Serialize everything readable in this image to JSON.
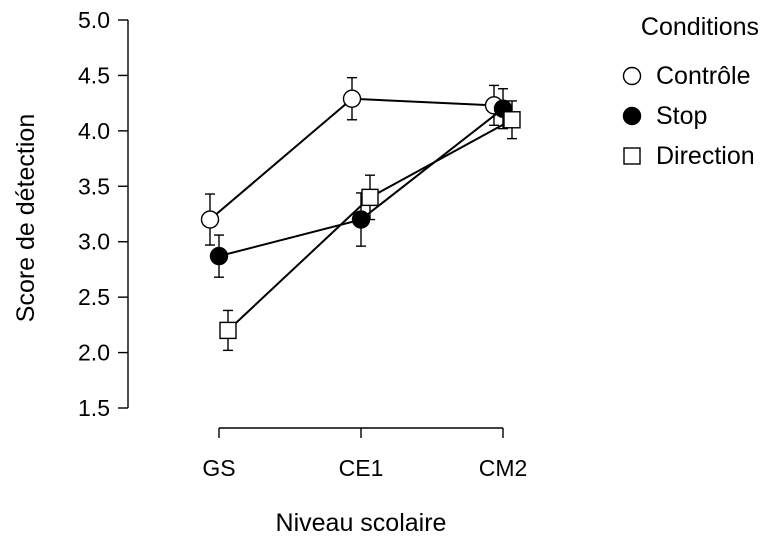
{
  "chart_data": {
    "type": "line",
    "title": "",
    "xlabel": "Niveau scolaire",
    "ylabel": "Score de détection",
    "categories": [
      "GS",
      "CE1",
      "CM2"
    ],
    "ylim": [
      1.5,
      5.0
    ],
    "yticks": [
      "1.5",
      "2.0",
      "2.5",
      "3.0",
      "3.5",
      "4.0",
      "4.5",
      "5.0"
    ],
    "grid": false,
    "legend": {
      "title": "Conditions",
      "placement": "top-right",
      "labels": [
        "Contrôle",
        "Stop",
        "Direction"
      ]
    },
    "series": [
      {
        "name": "Contrôle",
        "marker": "open-circle",
        "values": [
          3.2,
          4.29,
          4.23
        ],
        "errors": [
          0.23,
          0.19,
          0.18
        ]
      },
      {
        "name": "Stop",
        "marker": "filled-circle",
        "values": [
          2.87,
          3.2,
          4.2
        ],
        "errors": [
          0.19,
          0.24,
          0.18
        ]
      },
      {
        "name": "Direction",
        "marker": "open-square",
        "values": [
          2.2,
          3.4,
          4.1
        ],
        "errors": [
          0.18,
          0.2,
          0.17
        ]
      }
    ]
  }
}
